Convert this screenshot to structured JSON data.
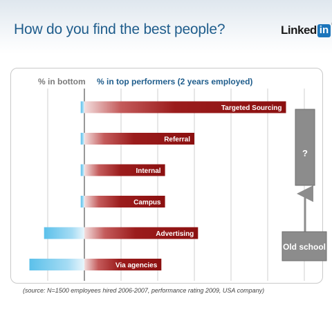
{
  "slide": {
    "title": "How do you find the best people?",
    "logo_text": "Linked",
    "logo_box": "in",
    "logo_mark": "®",
    "source": "(source: N=1500 employees hired 2006-2007, performance rating 2009, USA company)"
  },
  "chart_data": {
    "type": "bar",
    "orientation": "horizontal",
    "categories": [
      "Targeted Sourcing",
      "Referral",
      "Internal",
      "Campus",
      "Advertising",
      "Via agencies"
    ],
    "series": [
      {
        "name": "% in bottom",
        "direction": "left",
        "color": "#5bc0ea",
        "values": [
          1,
          1,
          1,
          1,
          11,
          15
        ]
      },
      {
        "name": "% in top performers (2 years employed)",
        "direction": "right",
        "color": "#9b1c1c",
        "values": [
          55,
          30,
          22,
          22,
          31,
          21
        ]
      }
    ],
    "annotations": {
      "question_box": "?",
      "old_school_box": "Old school"
    },
    "grid": true
  }
}
